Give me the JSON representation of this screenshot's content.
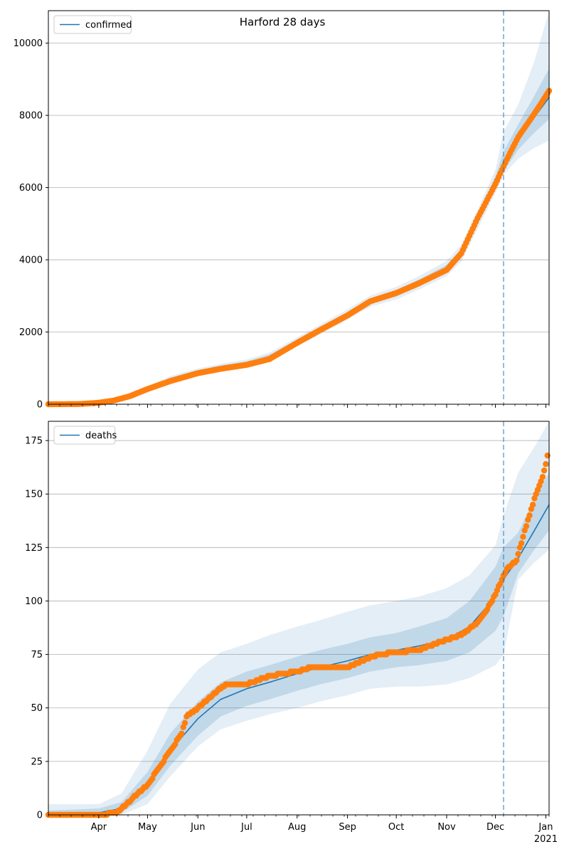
{
  "title": "Harford 28 days",
  "colors": {
    "line": "#1f77b4",
    "points": "#ff7f0e",
    "band": "#1f77b4",
    "cutoff": "#1f77b4"
  },
  "x_axis": {
    "start": "2020-03-01",
    "end": "2021-01-03",
    "tick_labels": [
      {
        "date": "2020-04-01",
        "label": "Apr"
      },
      {
        "date": "2020-05-01",
        "label": "May"
      },
      {
        "date": "2020-06-01",
        "label": "Jun"
      },
      {
        "date": "2020-07-01",
        "label": "Jul"
      },
      {
        "date": "2020-08-01",
        "label": "Aug"
      },
      {
        "date": "2020-09-01",
        "label": "Sep"
      },
      {
        "date": "2020-10-01",
        "label": "Oct"
      },
      {
        "date": "2020-11-01",
        "label": "Nov"
      },
      {
        "date": "2020-12-01",
        "label": "Dec"
      },
      {
        "date": "2021-01-01",
        "label": "Jan"
      }
    ],
    "year_label": "2021",
    "cutoff_date": "2020-12-06"
  },
  "chart_data": [
    {
      "type": "line",
      "legend": "confirmed",
      "legend_position": "top-left",
      "grid": "y",
      "ylim": [
        0,
        10900
      ],
      "yticks": [
        0,
        2000,
        4000,
        6000,
        8000,
        10000
      ],
      "model": [
        {
          "x": "2020-03-01",
          "y": 0
        },
        {
          "x": "2020-03-20",
          "y": 10
        },
        {
          "x": "2020-04-01",
          "y": 40
        },
        {
          "x": "2020-04-15",
          "y": 150
        },
        {
          "x": "2020-05-01",
          "y": 420
        },
        {
          "x": "2020-05-15",
          "y": 700
        },
        {
          "x": "2020-06-01",
          "y": 900
        },
        {
          "x": "2020-06-15",
          "y": 1030
        },
        {
          "x": "2020-07-01",
          "y": 1140
        },
        {
          "x": "2020-07-15",
          "y": 1320
        },
        {
          "x": "2020-08-01",
          "y": 1720
        },
        {
          "x": "2020-08-15",
          "y": 2060
        },
        {
          "x": "2020-09-01",
          "y": 2480
        },
        {
          "x": "2020-09-15",
          "y": 2850
        },
        {
          "x": "2020-10-01",
          "y": 3070
        },
        {
          "x": "2020-10-15",
          "y": 3360
        },
        {
          "x": "2020-11-01",
          "y": 3750
        },
        {
          "x": "2020-11-10",
          "y": 4180
        },
        {
          "x": "2020-11-20",
          "y": 5100
        },
        {
          "x": "2020-12-01",
          "y": 6150
        },
        {
          "x": "2020-12-06",
          "y": 6600
        },
        {
          "x": "2020-12-15",
          "y": 7300
        },
        {
          "x": "2020-12-25",
          "y": 7950
        },
        {
          "x": "2021-01-03",
          "y": 8500
        }
      ],
      "band_outer": {
        "lower": [
          0,
          5,
          30,
          120,
          360,
          630,
          820,
          950,
          1050,
          1220,
          1600,
          1930,
          2340,
          2700,
          2900,
          3180,
          3550,
          3950,
          4850,
          5850,
          6350,
          6800,
          7100,
          7300
        ],
        "upper": [
          10,
          20,
          60,
          190,
          490,
          780,
          990,
          1120,
          1240,
          1430,
          1850,
          2200,
          2630,
          3010,
          3250,
          3550,
          3970,
          4420,
          5380,
          6500,
          7550,
          8300,
          9500,
          10900
        ]
      },
      "band_inner": {
        "lower": [
          0,
          8,
          35,
          135,
          390,
          665,
          860,
          990,
          1095,
          1270,
          1660,
          1995,
          2410,
          2775,
          2985,
          3270,
          3650,
          4065,
          4975,
          6000,
          6450,
          7050,
          7520,
          7900
        ],
        "upper": [
          5,
          15,
          50,
          170,
          455,
          740,
          945,
          1075,
          1190,
          1375,
          1785,
          2130,
          2555,
          2930,
          3160,
          3455,
          3860,
          4300,
          5230,
          6320,
          7000,
          7750,
          8550,
          9300
        ]
      },
      "observed": [
        {
          "x": "2020-03-01",
          "y": 0
        },
        {
          "x": "2020-03-20",
          "y": 5
        },
        {
          "x": "2020-04-01",
          "y": 40
        },
        {
          "x": "2020-04-10",
          "y": 100
        },
        {
          "x": "2020-04-20",
          "y": 220
        },
        {
          "x": "2020-05-01",
          "y": 420
        },
        {
          "x": "2020-05-15",
          "y": 640
        },
        {
          "x": "2020-06-01",
          "y": 860
        },
        {
          "x": "2020-06-15",
          "y": 980
        },
        {
          "x": "2020-07-01",
          "y": 1090
        },
        {
          "x": "2020-07-15",
          "y": 1250
        },
        {
          "x": "2020-08-01",
          "y": 1700
        },
        {
          "x": "2020-08-15",
          "y": 2050
        },
        {
          "x": "2020-09-01",
          "y": 2460
        },
        {
          "x": "2020-09-15",
          "y": 2850
        },
        {
          "x": "2020-10-01",
          "y": 3080
        },
        {
          "x": "2020-10-15",
          "y": 3350
        },
        {
          "x": "2020-11-01",
          "y": 3720
        },
        {
          "x": "2020-11-10",
          "y": 4180
        },
        {
          "x": "2020-11-20",
          "y": 5150
        },
        {
          "x": "2020-12-01",
          "y": 6100
        },
        {
          "x": "2020-12-08",
          "y": 6780
        },
        {
          "x": "2020-12-15",
          "y": 7400
        },
        {
          "x": "2020-12-25",
          "y": 8050
        },
        {
          "x": "2021-01-03",
          "y": 8680
        }
      ]
    },
    {
      "type": "line",
      "legend": "deaths",
      "legend_position": "top-left",
      "grid": "y",
      "ylim": [
        0,
        184
      ],
      "yticks": [
        0,
        25,
        50,
        75,
        100,
        125,
        150,
        175
      ],
      "model": [
        {
          "x": "2020-03-01",
          "y": 0
        },
        {
          "x": "2020-04-01",
          "y": 1
        },
        {
          "x": "2020-04-15",
          "y": 3
        },
        {
          "x": "2020-05-01",
          "y": 14
        },
        {
          "x": "2020-05-15",
          "y": 30
        },
        {
          "x": "2020-06-01",
          "y": 45
        },
        {
          "x": "2020-06-15",
          "y": 54
        },
        {
          "x": "2020-07-01",
          "y": 59
        },
        {
          "x": "2020-07-15",
          "y": 62
        },
        {
          "x": "2020-08-01",
          "y": 66
        },
        {
          "x": "2020-08-15",
          "y": 69
        },
        {
          "x": "2020-09-01",
          "y": 72
        },
        {
          "x": "2020-09-15",
          "y": 75
        },
        {
          "x": "2020-10-01",
          "y": 77
        },
        {
          "x": "2020-10-15",
          "y": 79
        },
        {
          "x": "2020-11-01",
          "y": 82
        },
        {
          "x": "2020-11-15",
          "y": 88
        },
        {
          "x": "2020-12-01",
          "y": 102
        },
        {
          "x": "2020-12-06",
          "y": 110
        },
        {
          "x": "2020-12-15",
          "y": 120
        },
        {
          "x": "2020-12-25",
          "y": 133
        },
        {
          "x": "2021-01-03",
          "y": 145
        }
      ],
      "band_outer": {
        "lower": [
          0,
          0,
          0,
          5,
          18,
          32,
          40,
          44,
          47,
          50,
          53,
          56,
          59,
          60,
          60,
          61,
          64,
          70,
          75,
          110,
          118,
          124
        ],
        "upper": [
          5,
          5,
          10,
          30,
          52,
          68,
          76,
          80,
          84,
          88,
          91,
          95,
          98,
          100,
          102,
          106,
          112,
          126,
          140,
          160,
          172,
          184
        ]
      },
      "band_inner": {
        "lower": [
          0,
          0,
          1,
          9,
          23,
          37,
          46,
          51,
          54,
          58,
          61,
          64,
          67,
          69,
          70,
          72,
          76,
          86,
          93,
          113,
          124,
          133
        ],
        "upper": [
          2,
          3,
          6,
          20,
          38,
          53,
          62,
          67,
          70,
          74,
          77,
          80,
          83,
          85,
          88,
          92,
          100,
          116,
          125,
          132,
          148,
          160
        ]
      },
      "observed": [
        {
          "x": "2020-03-01",
          "y": 0
        },
        {
          "x": "2020-04-01",
          "y": 0
        },
        {
          "x": "2020-04-12",
          "y": 1
        },
        {
          "x": "2020-04-18",
          "y": 5
        },
        {
          "x": "2020-04-25",
          "y": 10
        },
        {
          "x": "2020-05-01",
          "y": 14
        },
        {
          "x": "2020-05-08",
          "y": 22
        },
        {
          "x": "2020-05-15",
          "y": 30
        },
        {
          "x": "2020-05-22",
          "y": 38
        },
        {
          "x": "2020-05-25",
          "y": 46
        },
        {
          "x": "2020-06-01",
          "y": 50
        },
        {
          "x": "2020-06-10",
          "y": 56
        },
        {
          "x": "2020-06-18",
          "y": 61
        },
        {
          "x": "2020-07-01",
          "y": 61
        },
        {
          "x": "2020-07-15",
          "y": 65
        },
        {
          "x": "2020-08-01",
          "y": 67
        },
        {
          "x": "2020-08-10",
          "y": 69
        },
        {
          "x": "2020-09-01",
          "y": 69
        },
        {
          "x": "2020-09-10",
          "y": 72
        },
        {
          "x": "2020-09-20",
          "y": 75
        },
        {
          "x": "2020-10-01",
          "y": 76
        },
        {
          "x": "2020-10-15",
          "y": 77
        },
        {
          "x": "2020-10-25",
          "y": 80
        },
        {
          "x": "2020-11-01",
          "y": 82
        },
        {
          "x": "2020-11-10",
          "y": 84
        },
        {
          "x": "2020-11-20",
          "y": 90
        },
        {
          "x": "2020-11-25",
          "y": 95
        },
        {
          "x": "2020-12-01",
          "y": 103
        },
        {
          "x": "2020-12-05",
          "y": 110
        },
        {
          "x": "2020-12-08",
          "y": 115
        },
        {
          "x": "2020-12-14",
          "y": 119
        },
        {
          "x": "2020-12-18",
          "y": 130
        },
        {
          "x": "2020-12-22",
          "y": 140
        },
        {
          "x": "2020-12-26",
          "y": 150
        },
        {
          "x": "2020-12-30",
          "y": 158
        },
        {
          "x": "2021-01-01",
          "y": 164
        },
        {
          "x": "2021-01-02",
          "y": 168
        }
      ]
    }
  ]
}
